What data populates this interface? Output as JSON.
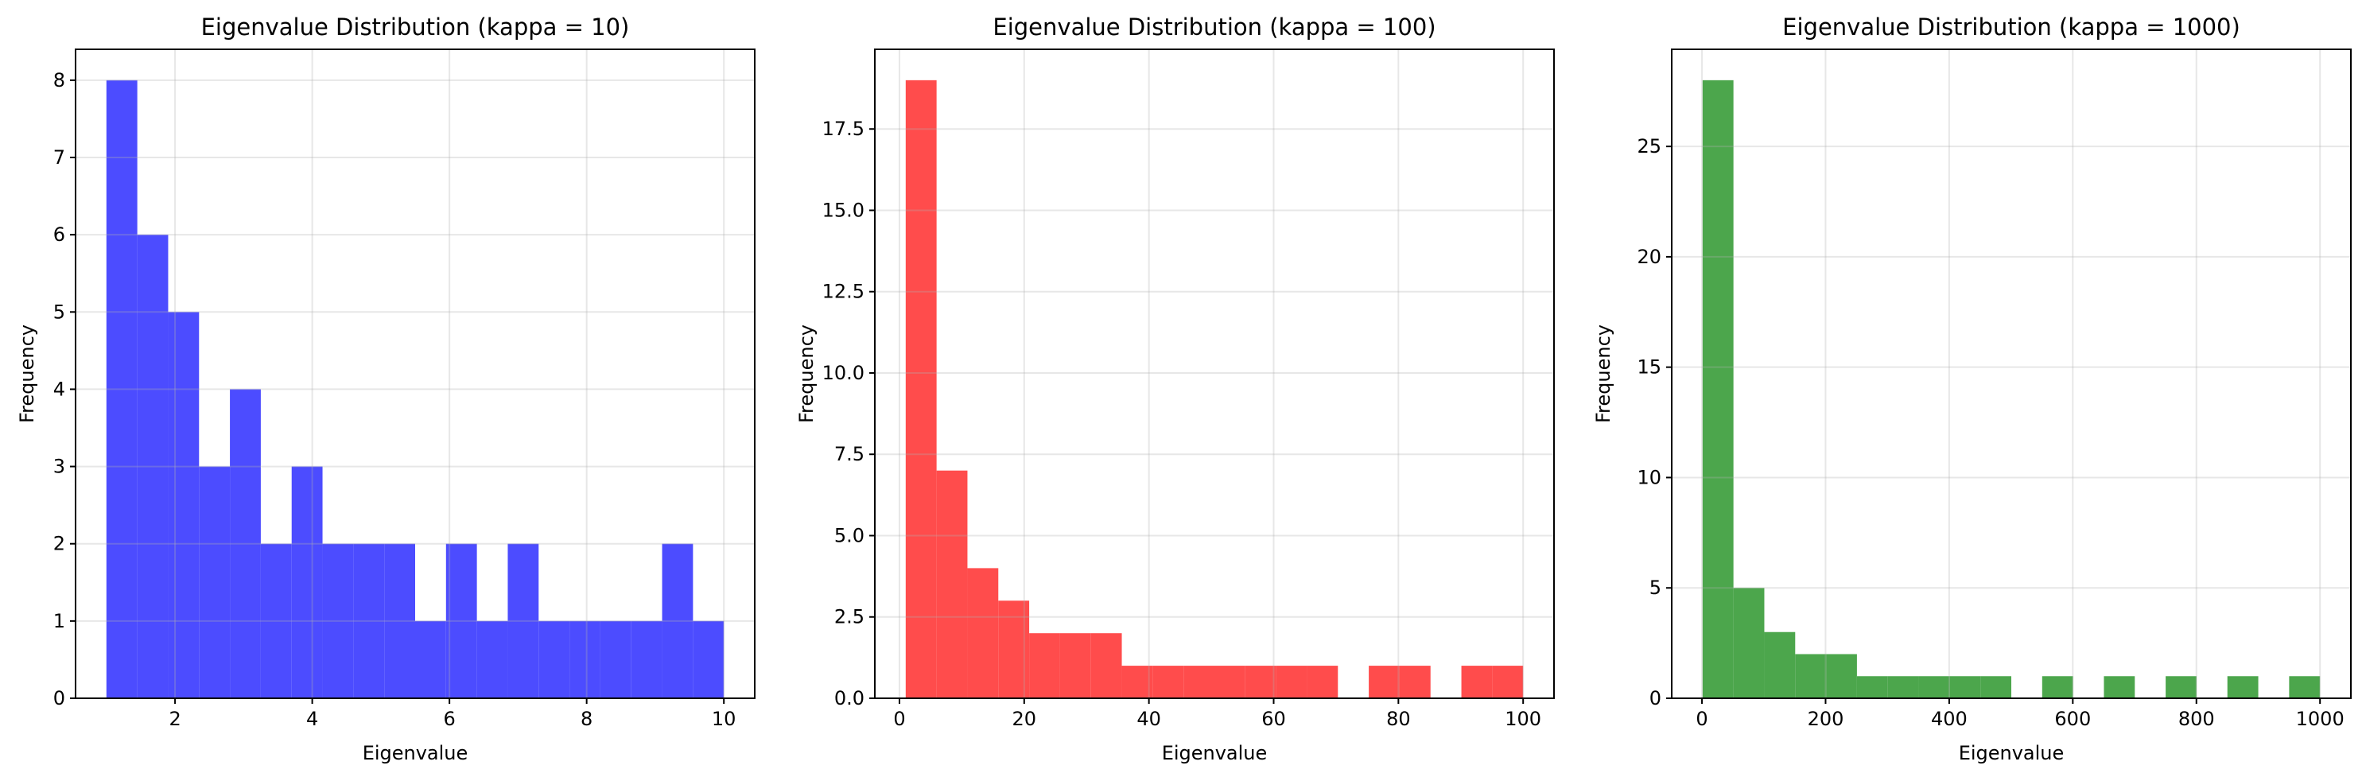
{
  "chart_data": [
    {
      "type": "bar",
      "title": "Eigenvalue Distribution (kappa = 10)",
      "xlabel": "Eigenvalue",
      "ylabel": "Frequency",
      "color": "#4c4cff",
      "bin_start": 1,
      "bin_end": 10,
      "values": [
        8,
        6,
        5,
        3,
        4,
        2,
        3,
        2,
        2,
        2,
        1,
        2,
        1,
        2,
        1,
        1,
        1,
        1,
        2,
        1
      ],
      "xlim": [
        0.55,
        10.45
      ],
      "ylim": [
        0,
        8.4
      ],
      "xticks": [
        2,
        4,
        6,
        8,
        10
      ],
      "xtick_labels": [
        "2",
        "4",
        "6",
        "8",
        "10"
      ],
      "yticks": [
        0,
        1,
        2,
        3,
        4,
        5,
        6,
        7,
        8
      ],
      "ytick_labels": [
        "0",
        "1",
        "2",
        "3",
        "4",
        "5",
        "6",
        "7",
        "8"
      ],
      "grid": true
    },
    {
      "type": "bar",
      "title": "Eigenvalue Distribution (kappa = 100)",
      "xlabel": "Eigenvalue",
      "ylabel": "Frequency",
      "color": "#ff4c4c",
      "bin_start": 1,
      "bin_end": 100,
      "values": [
        19,
        7,
        4,
        3,
        2,
        2,
        2,
        1,
        1,
        1,
        1,
        1,
        1,
        1,
        0,
        1,
        1,
        0,
        1,
        1
      ],
      "xlim": [
        -3.95,
        104.95
      ],
      "ylim": [
        0,
        19.95
      ],
      "xticks": [
        0,
        20,
        40,
        60,
        80,
        100
      ],
      "xtick_labels": [
        "0",
        "20",
        "40",
        "60",
        "80",
        "100"
      ],
      "yticks": [
        0,
        2.5,
        5,
        7.5,
        10,
        12.5,
        15,
        17.5
      ],
      "ytick_labels": [
        "0.0",
        "2.5",
        "5.0",
        "7.5",
        "10.0",
        "12.5",
        "15.0",
        "17.5"
      ],
      "grid": true
    },
    {
      "type": "bar",
      "title": "Eigenvalue Distribution (kappa = 1000)",
      "xlabel": "Eigenvalue",
      "ylabel": "Frequency",
      "color": "#4ca64c",
      "bin_start": 1,
      "bin_end": 1000,
      "values": [
        28,
        5,
        3,
        2,
        2,
        1,
        1,
        1,
        1,
        1,
        0,
        1,
        0,
        1,
        0,
        1,
        0,
        1,
        0,
        1
      ],
      "xlim": [
        -48.95,
        1049.95
      ],
      "ylim": [
        0,
        29.4
      ],
      "xticks": [
        0,
        200,
        400,
        600,
        800,
        1000
      ],
      "xtick_labels": [
        "0",
        "200",
        "400",
        "600",
        "800",
        "1000"
      ],
      "yticks": [
        0,
        5,
        10,
        15,
        20,
        25
      ],
      "ytick_labels": [
        "0",
        "5",
        "10",
        "15",
        "20",
        "25"
      ],
      "grid": true
    }
  ]
}
